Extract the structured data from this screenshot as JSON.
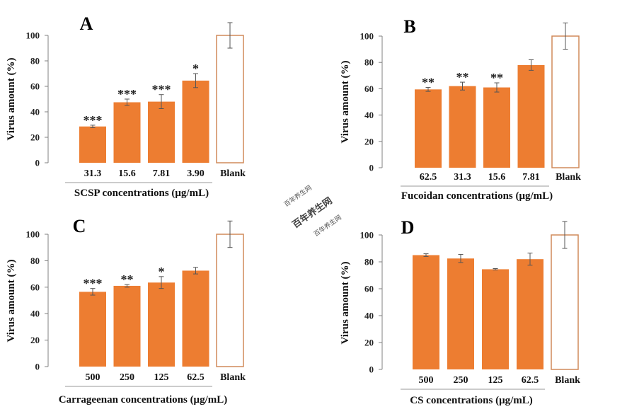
{
  "watermark": {
    "text": "百年养生网"
  },
  "chart_data": [
    {
      "panel": "A",
      "type": "bar",
      "categories": [
        "31.3",
        "15.6",
        "7.81",
        "3.90",
        "Blank"
      ],
      "values": [
        28.5,
        47.5,
        48,
        64.5,
        100
      ],
      "errors": [
        1,
        2.5,
        5.5,
        5.5,
        10
      ],
      "significance": [
        "***",
        "***",
        "***",
        "*",
        ""
      ],
      "xlabel": "SCSP concentrations (μg/mL)",
      "ylabel": "Virus amount (%)",
      "ylim": [
        0,
        100
      ],
      "yticks": [
        0,
        20,
        40,
        60,
        80,
        100
      ],
      "colors": {
        "sample": "#ED7D31",
        "blank_fill": "#FFFFFF",
        "blank_edge": "#D08A5A"
      }
    },
    {
      "panel": "B",
      "type": "bar",
      "categories": [
        "62.5",
        "31.3",
        "15.6",
        "7.81",
        "Blank"
      ],
      "values": [
        59.5,
        62,
        61,
        78,
        100
      ],
      "errors": [
        1.5,
        3,
        3.5,
        4,
        10
      ],
      "significance": [
        "**",
        "**",
        "**",
        "",
        ""
      ],
      "xlabel": "Fucoidan concentrations (μg/mL)",
      "ylabel": "Virus amount (%)",
      "ylim": [
        0,
        100
      ],
      "yticks": [
        0,
        20,
        40,
        60,
        80,
        100
      ],
      "colors": {
        "sample": "#ED7D31",
        "blank_fill": "#FFFFFF",
        "blank_edge": "#D08A5A"
      }
    },
    {
      "panel": "C",
      "type": "bar",
      "categories": [
        "500",
        "250",
        "125",
        "62.5",
        "Blank"
      ],
      "values": [
        56.5,
        61,
        63.5,
        72.5,
        100
      ],
      "errors": [
        2.5,
        1,
        4.5,
        2.5,
        10
      ],
      "significance": [
        "***",
        "**",
        "*",
        "",
        ""
      ],
      "xlabel": "Carrageenan concentrations (μg/mL)",
      "ylabel": "Virus amount (%)",
      "ylim": [
        0,
        100
      ],
      "yticks": [
        0,
        20,
        40,
        60,
        80,
        100
      ],
      "colors": {
        "sample": "#ED7D31",
        "blank_fill": "#FFFFFF",
        "blank_edge": "#D08A5A"
      }
    },
    {
      "panel": "D",
      "type": "bar",
      "categories": [
        "500",
        "250",
        "125",
        "62.5",
        "Blank"
      ],
      "values": [
        85,
        82.5,
        74.5,
        82,
        100
      ],
      "errors": [
        1,
        3,
        0.5,
        4.5,
        10
      ],
      "significance": [
        "",
        "",
        "",
        "",
        ""
      ],
      "xlabel": "CS concentrations (μg/mL)",
      "ylabel": "Virus amount (%)",
      "ylim": [
        0,
        100
      ],
      "yticks": [
        0,
        20,
        40,
        60,
        80,
        100
      ],
      "colors": {
        "sample": "#ED7D31",
        "blank_fill": "#FFFFFF",
        "blank_edge": "#D08A5A"
      }
    }
  ]
}
